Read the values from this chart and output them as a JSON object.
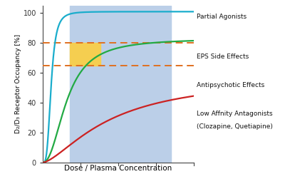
{
  "xlabel": "Dose / Plasma Concentration",
  "ylabel": "D₂/D₃ Receptor Occupancy [%]",
  "xlim": [
    0,
    10
  ],
  "ylim": [
    0,
    105
  ],
  "yticks": [
    0,
    20,
    40,
    60,
    80,
    100
  ],
  "bg_blue_xstart": 1.8,
  "bg_blue_xend": 8.5,
  "bg_yellow_xstart": 1.8,
  "bg_yellow_xend": 3.8,
  "eps_line_y": 80,
  "antipsychotic_line_y": 65,
  "partial_agonist_color": "#1AADCC",
  "high_affinity_color": "#22AA44",
  "low_affinity_color": "#CC2222",
  "eps_color": "#E07020",
  "blue_bg_color": "#BBCFE8",
  "yellow_bg_color": "#F5CE50",
  "figure_bg": "#FFFFFF",
  "partial_agonist_vmax": 101,
  "partial_agonist_k": 0.55,
  "partial_agonist_n": 3.5,
  "high_affinity_vmax": 83,
  "high_affinity_k": 1.6,
  "high_affinity_n": 2.2,
  "low_affinity_vmax": 58,
  "low_affinity_k": 4.5,
  "low_affinity_n": 1.5,
  "label_partial": "Partial Agonists",
  "label_eps": "EPS Side Effects",
  "label_antipsychotic": "Antipsychotic Effects",
  "label_low1": "Low Affnity Antagonists",
  "label_low2": "(Clozapine, Quetiapine)",
  "label_fontsize": 6.5,
  "ylabel_fontsize": 6.5,
  "xlabel_fontsize": 7.5,
  "tick_fontsize": 7
}
